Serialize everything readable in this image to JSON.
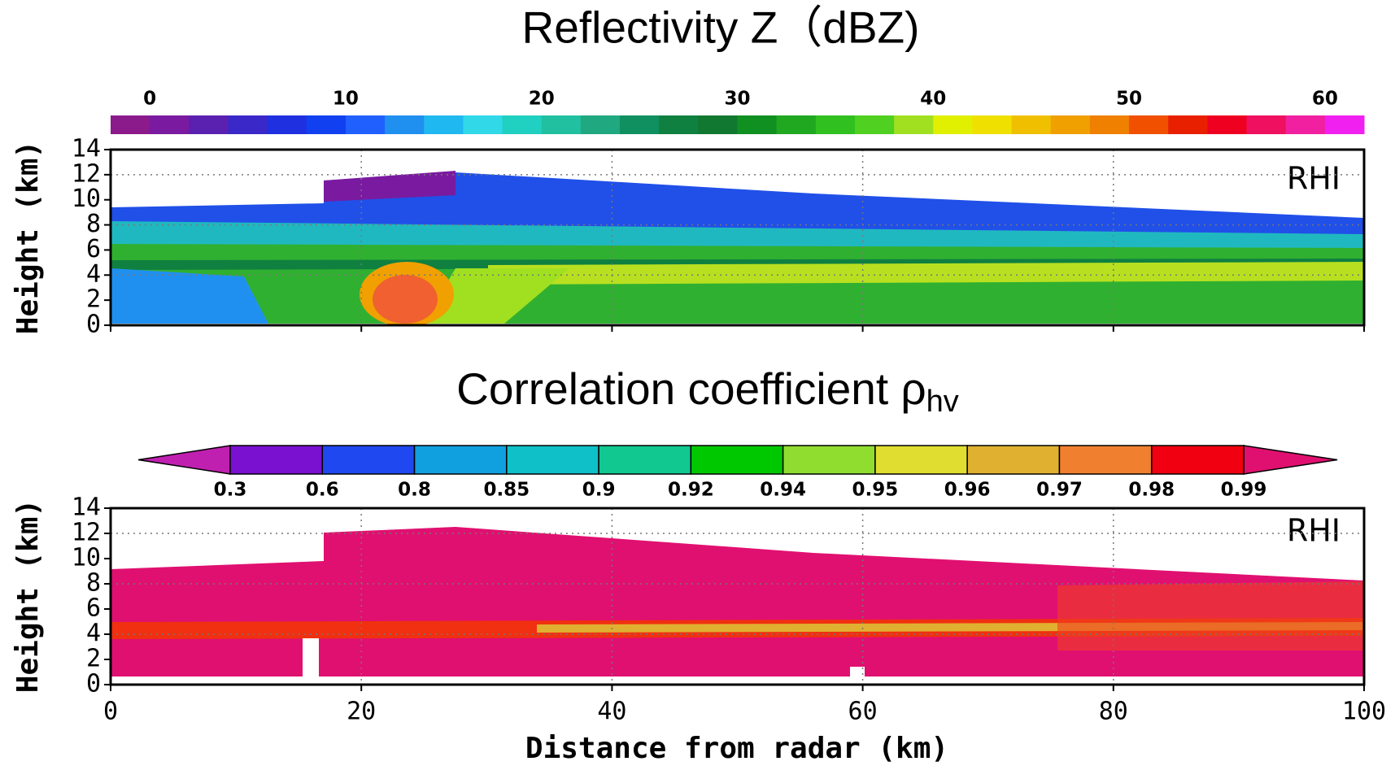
{
  "chart_data": [
    {
      "type": "heatmap",
      "title": "Reflectivity Z（dBZ)",
      "colorbar": {
        "clim": [
          -2,
          62
        ],
        "ticks": [
          0,
          10,
          20,
          30,
          40,
          50,
          60
        ],
        "colors": [
          "#8b1a8b",
          "#7a1aa0",
          "#5a20b0",
          "#3a28c8",
          "#1e30e0",
          "#1040f0",
          "#2060ff",
          "#2090f0",
          "#20b8f0",
          "#30d8e8",
          "#20d0c0",
          "#20c0a0",
          "#20a880",
          "#109060",
          "#108040",
          "#107830",
          "#109020",
          "#20a820",
          "#30c020",
          "#50d020",
          "#a0e020",
          "#e0f000",
          "#f0e000",
          "#f0c000",
          "#f0a000",
          "#f08000",
          "#f05000",
          "#e82000",
          "#f00020",
          "#f01060",
          "#f020a0",
          "#f020f0"
        ]
      },
      "ylabel": "Height (km)",
      "ylim": [
        0,
        14
      ],
      "yticks": [
        0,
        2,
        4,
        6,
        8,
        10,
        12,
        14
      ],
      "ygrid": [
        4,
        8,
        12
      ],
      "annotation": "RHI",
      "grid": true
    },
    {
      "type": "heatmap",
      "title": "Correlation coefficient ρ",
      "title_subscript": "hv",
      "colorbar": {
        "ticks": [
          0.3,
          0.6,
          0.8,
          0.85,
          0.9,
          0.92,
          0.94,
          0.95,
          0.96,
          0.97,
          0.98,
          0.99
        ],
        "colors": [
          "#c020b0",
          "#7a10d0",
          "#2048f0",
          "#10a0e0",
          "#10c0c8",
          "#10c890",
          "#00c800",
          "#90dd30",
          "#e0dd30",
          "#e0b030",
          "#f08030",
          "#f00010",
          "#e01070"
        ]
      },
      "ylabel": "Height (km)",
      "ylim": [
        0,
        14
      ],
      "yticks": [
        0,
        2,
        4,
        6,
        8,
        10,
        12,
        14
      ],
      "ygrid": [
        4,
        8,
        12
      ],
      "xlabel": "Distance from radar (km)",
      "xlim": [
        0,
        100
      ],
      "xticks": [
        0,
        20,
        40,
        60,
        80,
        100
      ],
      "annotation": "RHI",
      "grid": true
    }
  ]
}
